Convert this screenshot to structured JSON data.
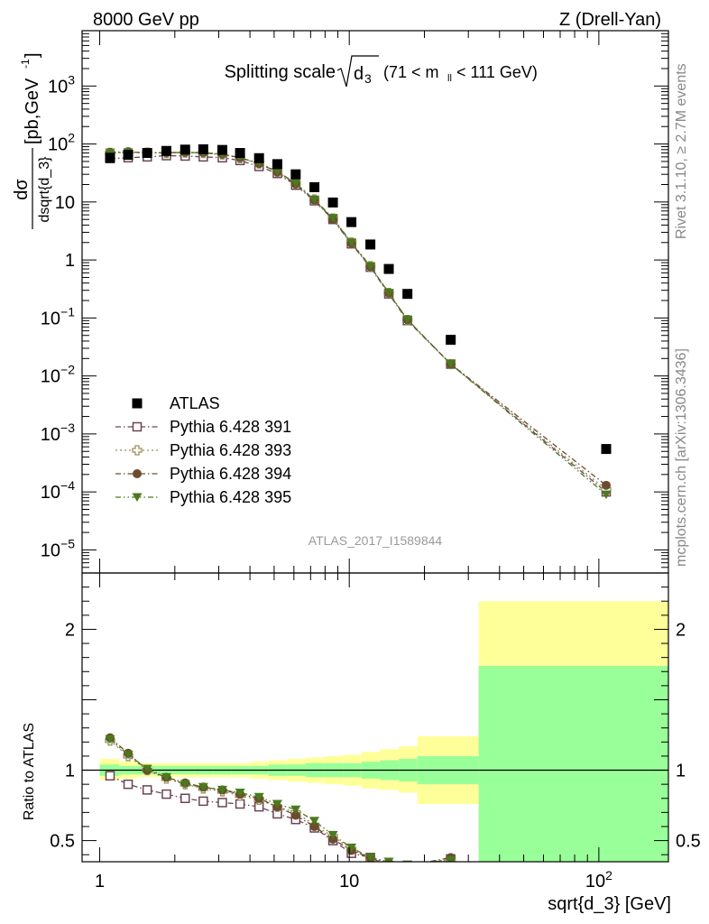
{
  "header": {
    "left": "8000 GeV pp",
    "right": "Z (Drell-Yan)"
  },
  "plot_title": {
    "main": "Splitting scale",
    "sqrt_arg": "d",
    "sqrt_sub": "3",
    "range_pre": "(71 < m",
    "range_sub": "ll",
    "range_post": " < 111 GeV)"
  },
  "side_labels": {
    "rivet": "Rivet 3.1.10, ≥ 2.7M events",
    "mcplots": "mcplots.cern.ch [arXiv:1306.3436]"
  },
  "analysis_id": "ATLAS_2017_I1589844",
  "axes": {
    "ylabel_main": "dσ/dsqrt{d_3} [pb,GeV⁻¹]",
    "ylabel_num": "dσ",
    "ylabel_den": "dsqrt{d_3}",
    "ylabel_unit": "[pb,GeV",
    "ylabel_unit_sup": "-1",
    "ylabel_unit_close": "]",
    "ylabel_ratio": "Ratio to ATLAS",
    "xlabel": "sqrt{d_3} [GeV]"
  },
  "colors": {
    "data": "#000000",
    "p391": "#6b4455",
    "p393": "#9b8f58",
    "p394": "#6b4c2f",
    "p395": "#4a7a1e",
    "band_inner": "#99ff99",
    "band_outer": "#ffff99"
  },
  "chart_data": [
    {
      "type": "scatter",
      "panel": "main",
      "xscale": "log",
      "yscale": "log",
      "xlim": [
        0.85,
        190
      ],
      "ylim": [
        4e-06,
        9000
      ],
      "x_ticks": [
        {
          "v": 1,
          "label": "1"
        },
        {
          "v": 10,
          "label": "10"
        },
        {
          "v": 100,
          "label": "10",
          "sup": "2"
        }
      ],
      "y_ticks": [
        {
          "v": 1e-05,
          "label": "10",
          "sup": "−5"
        },
        {
          "v": 0.0001,
          "label": "10",
          "sup": "−4"
        },
        {
          "v": 0.001,
          "label": "10",
          "sup": "−3"
        },
        {
          "v": 0.01,
          "label": "10",
          "sup": "−2"
        },
        {
          "v": 0.1,
          "label": "10",
          "sup": "−1"
        },
        {
          "v": 1,
          "label": "1"
        },
        {
          "v": 10,
          "label": "10"
        },
        {
          "v": 100,
          "label": "10",
          "sup": "2"
        },
        {
          "v": 1000,
          "label": "10",
          "sup": "3"
        }
      ],
      "legend_position": "lower-left",
      "series": [
        {
          "name": "ATLAS",
          "marker": "square-filled",
          "x": [
            1.1,
            1.3,
            1.55,
            1.85,
            2.2,
            2.6,
            3.1,
            3.65,
            4.35,
            5.15,
            6.1,
            7.25,
            8.6,
            10.2,
            12.15,
            14.4,
            17.1,
            25.5,
            107
          ],
          "y": [
            58,
            65,
            70,
            76,
            80,
            81,
            79,
            70,
            57,
            45,
            30,
            18,
            9.8,
            4.5,
            1.85,
            0.7,
            0.26,
            0.042,
            0.00055
          ]
        },
        {
          "name": "Pythia 6.428 391",
          "marker": "square-open",
          "line": "dashdot",
          "x": [
            1.1,
            1.3,
            1.55,
            1.85,
            2.2,
            2.6,
            3.1,
            3.65,
            4.35,
            5.15,
            6.1,
            7.25,
            8.6,
            10.2,
            12.15,
            14.4,
            17.1,
            25.5,
            107
          ],
          "y": [
            56,
            58,
            60,
            63,
            62,
            60,
            58,
            52,
            41,
            31,
            19.5,
            10.5,
            5.0,
            1.9,
            0.75,
            0.26,
            0.09,
            0.016,
            0.0001
          ]
        },
        {
          "name": "Pythia 6.428 393",
          "marker": "cross-open",
          "line": "dotted",
          "x": [
            1.1,
            1.3,
            1.55,
            1.85,
            2.2,
            2.6,
            3.1,
            3.65,
            4.35,
            5.15,
            6.1,
            7.25,
            8.6,
            10.2,
            12.15,
            14.4,
            17.1,
            25.5,
            107
          ],
          "y": [
            70,
            72,
            71,
            70,
            71,
            70,
            66,
            57,
            46,
            33,
            21,
            11,
            5.2,
            2.0,
            0.78,
            0.27,
            0.092,
            0.016,
            0.00011
          ]
        },
        {
          "name": "Pythia 6.428 394",
          "marker": "circle-filled",
          "line": "dashdot",
          "x": [
            1.1,
            1.3,
            1.55,
            1.85,
            2.2,
            2.6,
            3.1,
            3.65,
            4.35,
            5.15,
            6.1,
            7.25,
            8.6,
            10.2,
            12.15,
            14.4,
            17.1,
            25.5,
            107
          ],
          "y": [
            72,
            73,
            70,
            71,
            72,
            71,
            67,
            58,
            46,
            33,
            20.5,
            10.8,
            5.0,
            1.95,
            0.77,
            0.27,
            0.093,
            0.016,
            0.00013
          ]
        },
        {
          "name": "Pythia 6.428 395",
          "marker": "triangle-down-filled",
          "line": "dashdotdot",
          "x": [
            1.1,
            1.3,
            1.55,
            1.85,
            2.2,
            2.6,
            3.1,
            3.65,
            4.35,
            5.15,
            6.1,
            7.25,
            8.6,
            10.2,
            12.15,
            14.4,
            17.1,
            25.5,
            107
          ],
          "y": [
            71,
            72,
            71,
            70,
            72,
            70,
            66,
            58,
            47,
            34,
            21,
            11,
            5.3,
            2.0,
            0.78,
            0.27,
            0.094,
            0.016,
            9e-05
          ]
        }
      ]
    },
    {
      "type": "line",
      "panel": "ratio",
      "xscale": "log",
      "yscale": "linear",
      "xlim": [
        0.85,
        190
      ],
      "ylim": [
        0.35,
        2.4
      ],
      "y_ticks": [
        {
          "v": 0.5,
          "label": "0.5"
        },
        {
          "v": 1,
          "label": "1"
        },
        {
          "v": 2,
          "label": "2"
        }
      ],
      "bands": {
        "edges": [
          1,
          1.2,
          1.42,
          1.7,
          2.02,
          2.4,
          2.85,
          3.38,
          4.0,
          4.75,
          5.65,
          6.7,
          7.95,
          9.45,
          11.2,
          13.3,
          15.8,
          18.75,
          33,
          190
        ],
        "outer_lo": [
          0.93,
          0.94,
          0.95,
          0.95,
          0.95,
          0.95,
          0.95,
          0.95,
          0.94,
          0.93,
          0.92,
          0.91,
          0.9,
          0.89,
          0.87,
          0.86,
          0.84,
          0.76,
          0.35
        ],
        "outer_hi": [
          1.08,
          1.06,
          1.05,
          1.05,
          1.05,
          1.05,
          1.05,
          1.05,
          1.06,
          1.07,
          1.08,
          1.09,
          1.1,
          1.11,
          1.13,
          1.15,
          1.17,
          1.24,
          2.2
        ],
        "inner_lo": [
          0.96,
          0.97,
          0.97,
          0.97,
          0.97,
          0.97,
          0.97,
          0.97,
          0.97,
          0.96,
          0.96,
          0.95,
          0.95,
          0.95,
          0.94,
          0.93,
          0.92,
          0.9,
          0.35
        ],
        "inner_hi": [
          1.04,
          1.03,
          1.03,
          1.03,
          1.03,
          1.03,
          1.03,
          1.03,
          1.03,
          1.04,
          1.04,
          1.05,
          1.05,
          1.05,
          1.06,
          1.07,
          1.08,
          1.1,
          1.74
        ]
      },
      "series": [
        {
          "name": "Pythia 6.428 391",
          "x": [
            1.1,
            1.3,
            1.55,
            1.85,
            2.2,
            2.6,
            3.1,
            3.65,
            4.35,
            5.15,
            6.1,
            7.25,
            8.6,
            10.2,
            12.15,
            14.4,
            17.1,
            25.5
          ],
          "y": [
            0.96,
            0.9,
            0.86,
            0.83,
            0.8,
            0.78,
            0.77,
            0.76,
            0.74,
            0.69,
            0.65,
            0.59,
            0.5,
            0.41,
            0.38,
            0.32,
            0.32,
            0.37
          ]
        },
        {
          "name": "Pythia 6.428 393",
          "x": [
            1.1,
            1.3,
            1.55,
            1.85,
            2.2,
            2.6,
            3.1,
            3.65,
            4.35,
            5.15,
            6.1,
            7.25,
            8.6,
            10.2,
            12.15,
            14.4,
            17.1,
            25.5
          ],
          "y": [
            1.21,
            1.1,
            1.0,
            0.94,
            0.9,
            0.87,
            0.85,
            0.82,
            0.79,
            0.74,
            0.7,
            0.61,
            0.53,
            0.44,
            0.37,
            0.34,
            0.32,
            0.37
          ]
        },
        {
          "name": "Pythia 6.428 394",
          "x": [
            1.1,
            1.3,
            1.55,
            1.85,
            2.2,
            2.6,
            3.1,
            3.65,
            4.35,
            5.15,
            6.1,
            7.25,
            8.6,
            10.2,
            12.15,
            14.4,
            17.1,
            25.5
          ],
          "y": [
            1.23,
            1.12,
            1.0,
            0.95,
            0.91,
            0.88,
            0.86,
            0.83,
            0.8,
            0.74,
            0.68,
            0.6,
            0.51,
            0.43,
            0.38,
            0.34,
            0.32,
            0.38
          ]
        },
        {
          "name": "Pythia 6.428 395",
          "x": [
            1.1,
            1.3,
            1.55,
            1.85,
            2.2,
            2.6,
            3.1,
            3.65,
            4.35,
            5.15,
            6.1,
            7.25,
            8.6,
            10.2,
            12.15,
            14.4,
            17.1,
            25.5
          ],
          "y": [
            1.22,
            1.11,
            1.01,
            0.95,
            0.9,
            0.88,
            0.86,
            0.84,
            0.81,
            0.76,
            0.72,
            0.64,
            0.54,
            0.45,
            0.38,
            0.35,
            0.33,
            0.36
          ]
        }
      ]
    }
  ]
}
